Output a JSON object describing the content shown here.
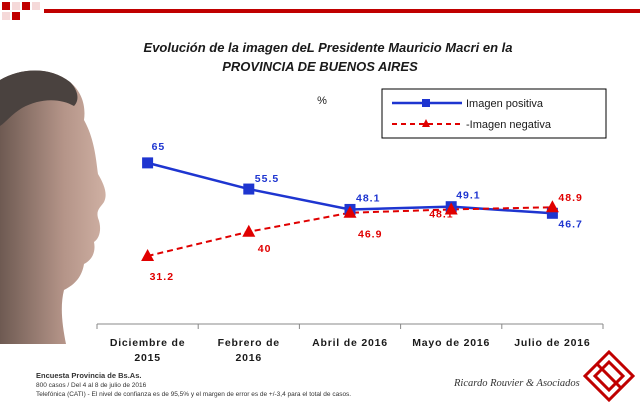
{
  "chart_data": {
    "type": "line",
    "title": "Evolución de la imagen deL Presidente Mauricio Macri en la",
    "subtitle": "PROVINCIA DE BUENOS AIRES",
    "unit_label": "%",
    "categories": [
      "Diciembre de 2015",
      "Febrero de 2016",
      "Abril de 2016",
      "Mayo de 2016",
      "Julio de 2016"
    ],
    "category_lines": [
      [
        "Diciembre de",
        "2015"
      ],
      [
        "Febrero de",
        "2016"
      ],
      [
        "Abril de 2016"
      ],
      [
        "Mayo de 2016"
      ],
      [
        "Julio de 2016"
      ]
    ],
    "series": [
      {
        "name": "Imagen positiva",
        "values": [
          65,
          55.5,
          48.1,
          49.1,
          46.7
        ],
        "labels": [
          "65",
          "55.5",
          "48.1",
          "49.1",
          "46.7"
        ],
        "color": "#1e35d0",
        "marker": "square",
        "line_style": "solid"
      },
      {
        "name": "-Imagen negativa",
        "values": [
          31.2,
          40,
          46.9,
          48.1,
          48.9
        ],
        "labels": [
          "31.2",
          "40",
          "46.9",
          "48.1",
          "48.9"
        ],
        "color": "#e00000",
        "marker": "triangle",
        "line_style": "dashed"
      }
    ],
    "grid": false,
    "legend_position": "top-right"
  },
  "footer": {
    "source": "Encuesta Provincia de Bs.As.",
    "sample": "800 casos / Del 4 al 8 de julio de 2016",
    "method": "Telefónica (CATI) - El nivel de confianza es de 95,5% y el margen de error es de +/-3,4 para el total de casos."
  },
  "brand": {
    "name": "Ricardo Rouvier & Asociados",
    "accent": "#c00000",
    "logo": "diamond-logo-icon"
  },
  "photo": {
    "icon": "portrait-photo-icon"
  }
}
